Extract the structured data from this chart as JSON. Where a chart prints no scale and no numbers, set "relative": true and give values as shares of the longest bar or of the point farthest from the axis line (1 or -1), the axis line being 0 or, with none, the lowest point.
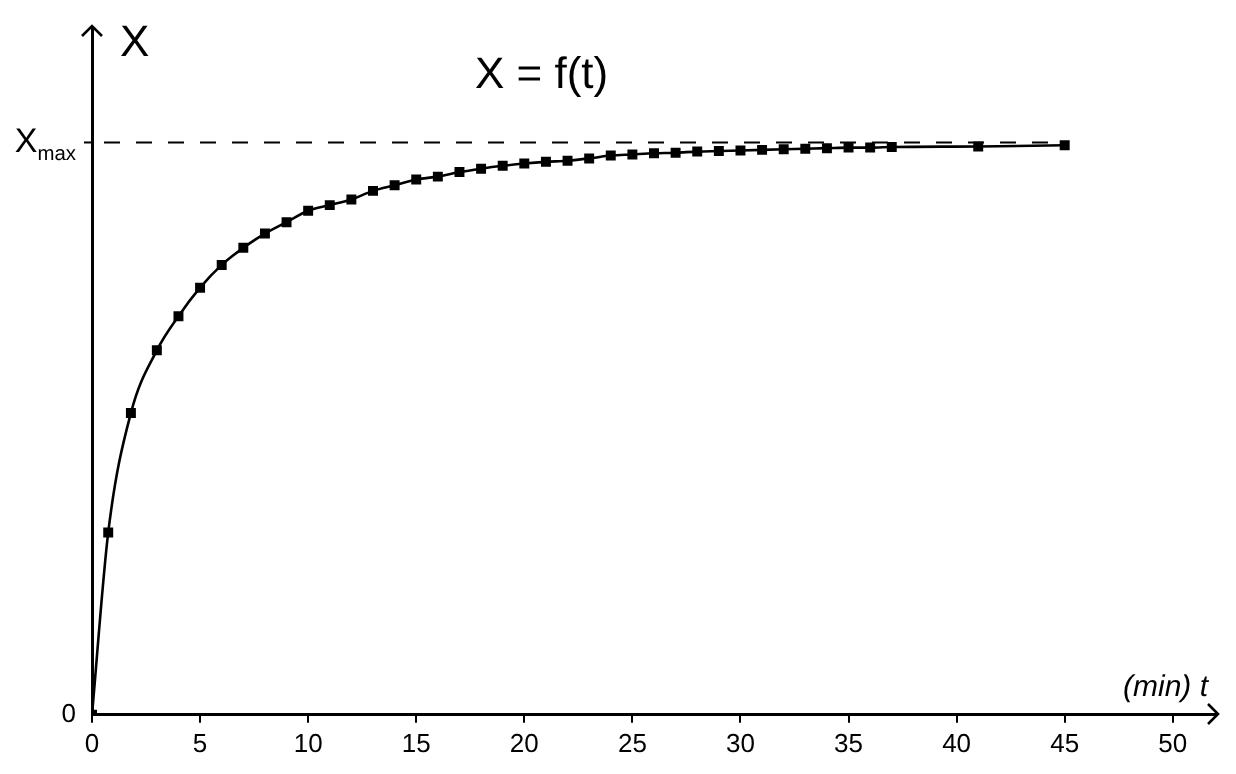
{
  "chart_data": {
    "type": "line",
    "title": "X = f(t)",
    "xlabel": "(min) t",
    "ylabel": "X",
    "relative": true,
    "x": [
      0,
      0.75,
      1.8,
      3,
      4,
      5,
      6,
      7,
      8,
      9,
      10,
      11,
      12,
      13,
      14,
      15,
      16,
      17,
      18,
      19,
      20,
      21,
      22,
      23,
      24,
      25,
      26,
      27,
      28,
      29,
      30,
      31,
      32,
      33,
      34,
      35,
      36,
      37,
      41,
      45
    ],
    "series": [
      {
        "color": "#000000",
        "values": [
          0,
          0.32,
          0.53,
          0.64,
          0.7,
          0.75,
          0.79,
          0.82,
          0.845,
          0.865,
          0.885,
          0.895,
          0.905,
          0.92,
          0.93,
          0.94,
          0.945,
          0.953,
          0.959,
          0.964,
          0.968,
          0.971,
          0.973,
          0.977,
          0.982,
          0.984,
          0.986,
          0.987,
          0.989,
          0.99,
          0.991,
          0.992,
          0.993,
          0.994,
          0.995,
          0.996,
          0.996,
          0.997,
          0.998,
          1
        ]
      }
    ],
    "xlim": [
      0,
      52
    ],
    "xticks": [
      0,
      5,
      10,
      15,
      20,
      25,
      30,
      35,
      40,
      45,
      50
    ],
    "ref_lines": [
      {
        "axis": "y",
        "value": 1.005,
        "label": "X$_{max}$",
        "line_style": "dashed",
        "color": "#000000"
      }
    ],
    "annotations": [
      "0"
    ],
    "grid": false,
    "legend": false,
    "marker": "square",
    "line_style": "solid"
  }
}
